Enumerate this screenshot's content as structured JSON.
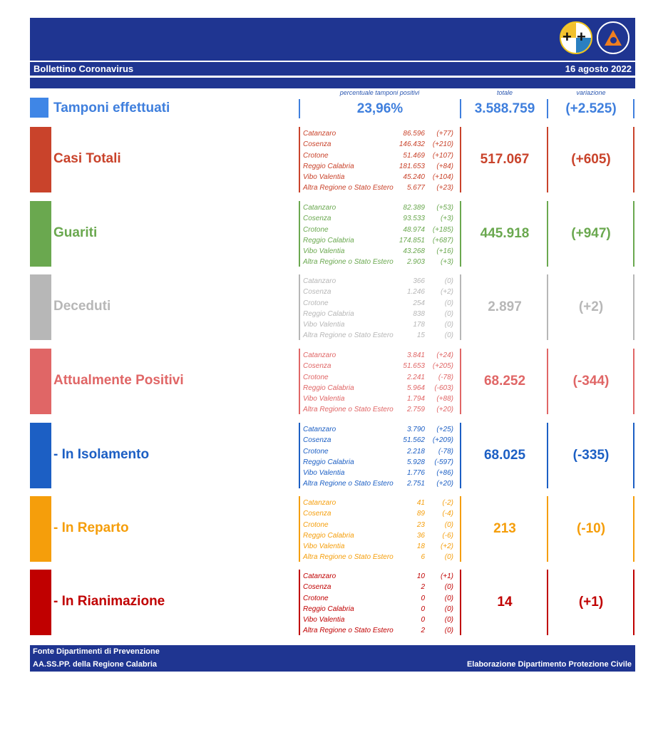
{
  "header": {
    "title": "Bollettino Coronavirus",
    "date": "16 agosto 2022"
  },
  "columns": {
    "percent_label": "percentuale tamponi positivi",
    "total_label": "totale",
    "variation_label": "variazione"
  },
  "tamponi": {
    "title": "Tamponi effettuati",
    "percent": "23,96%",
    "total": "3.588.759",
    "variation": "(+2.525)",
    "color": "#3f7fdd"
  },
  "blocks": [
    {
      "title": "Casi Totali",
      "color": "#c9432b",
      "total": "517.067",
      "variation": "(+605)",
      "rows": [
        {
          "name": "Catanzaro",
          "value": "86.596",
          "delta": "(+77)"
        },
        {
          "name": "Cosenza",
          "value": "146.432",
          "delta": "(+210)"
        },
        {
          "name": "Crotone",
          "value": "51.469",
          "delta": "(+107)"
        },
        {
          "name": "Reggio Calabria",
          "value": "181.653",
          "delta": "(+84)"
        },
        {
          "name": "Vibo Valentia",
          "value": "45.240",
          "delta": "(+104)"
        },
        {
          "name": "Altra Regione o Stato Estero",
          "value": "5.677",
          "delta": "(+23)"
        }
      ]
    },
    {
      "title": "Guariti",
      "color": "#6aa84f",
      "total": "445.918",
      "variation": "(+947)",
      "rows": [
        {
          "name": "Catanzaro",
          "value": "82.389",
          "delta": "(+53)"
        },
        {
          "name": "Cosenza",
          "value": "93.533",
          "delta": "(+3)"
        },
        {
          "name": "Crotone",
          "value": "48.974",
          "delta": "(+185)"
        },
        {
          "name": "Reggio Calabria",
          "value": "174.851",
          "delta": "(+687)"
        },
        {
          "name": "Vibo Valentia",
          "value": "43.268",
          "delta": "(+16)"
        },
        {
          "name": "Altra Regione o Stato Estero",
          "value": "2.903",
          "delta": "(+3)"
        }
      ]
    },
    {
      "title": "Deceduti",
      "color": "#b7b7b7",
      "total": "2.897",
      "variation": "(+2)",
      "rows": [
        {
          "name": "Catanzaro",
          "value": "366",
          "delta": "(0)"
        },
        {
          "name": "Cosenza",
          "value": "1.246",
          "delta": "(+2)"
        },
        {
          "name": "Crotone",
          "value": "254",
          "delta": "(0)"
        },
        {
          "name": "Reggio Calabria",
          "value": "838",
          "delta": "(0)"
        },
        {
          "name": "Vibo Valentia",
          "value": "178",
          "delta": "(0)"
        },
        {
          "name": "Altra Regione o Stato Estero",
          "value": "15",
          "delta": "(0)"
        }
      ]
    },
    {
      "title": "Attualmente Positivi",
      "color": "#e06666",
      "total": "68.252",
      "variation": "(-344)",
      "rows": [
        {
          "name": "Catanzaro",
          "value": "3.841",
          "delta": "(+24)"
        },
        {
          "name": "Cosenza",
          "value": "51.653",
          "delta": "(+205)"
        },
        {
          "name": "Crotone",
          "value": "2.241",
          "delta": "(-78)"
        },
        {
          "name": "Reggio Calabria",
          "value": "5.964",
          "delta": "(-603)"
        },
        {
          "name": "Vibo Valentia",
          "value": "1.794",
          "delta": "(+88)"
        },
        {
          "name": "Altra Regione o Stato Estero",
          "value": "2.759",
          "delta": "(+20)"
        }
      ]
    },
    {
      "title": "- In Isolamento",
      "color": "#1c5fc4",
      "total": "68.025",
      "variation": "(-335)",
      "rows": [
        {
          "name": "Catanzaro",
          "value": "3.790",
          "delta": "(+25)"
        },
        {
          "name": "Cosenza",
          "value": "51.562",
          "delta": "(+209)"
        },
        {
          "name": "Crotone",
          "value": "2.218",
          "delta": "(-78)"
        },
        {
          "name": "Reggio Calabria",
          "value": "5.928",
          "delta": "(-597)"
        },
        {
          "name": "Vibo Valentia",
          "value": "1.776",
          "delta": "(+86)"
        },
        {
          "name": "Altra Regione o Stato Estero",
          "value": "2.751",
          "delta": "(+20)"
        }
      ]
    },
    {
      "title": "- In Reparto",
      "color": "#f59e0b",
      "total": "213",
      "variation": "(-10)",
      "rows": [
        {
          "name": "Catanzaro",
          "value": "41",
          "delta": "(-2)"
        },
        {
          "name": "Cosenza",
          "value": "89",
          "delta": "(-4)"
        },
        {
          "name": "Crotone",
          "value": "23",
          "delta": "(0)"
        },
        {
          "name": "Reggio Calabria",
          "value": "36",
          "delta": "(-6)"
        },
        {
          "name": "Vibo Valentia",
          "value": "18",
          "delta": "(+2)"
        },
        {
          "name": "Altra Regione o Stato Estero",
          "value": "6",
          "delta": "(0)"
        }
      ]
    },
    {
      "title": "- In Rianimazione",
      "color": "#c00000",
      "total": "14",
      "variation": "(+1)",
      "rows": [
        {
          "name": "Catanzaro",
          "value": "10",
          "delta": "(+1)"
        },
        {
          "name": "Cosenza",
          "value": "2",
          "delta": "(0)"
        },
        {
          "name": "Crotone",
          "value": "0",
          "delta": "(0)"
        },
        {
          "name": "Reggio Calabria",
          "value": "0",
          "delta": "(0)"
        },
        {
          "name": "Vibo Valentia",
          "value": "0",
          "delta": "(0)"
        },
        {
          "name": "Altra Regione o Stato Estero",
          "value": "2",
          "delta": "(0)"
        }
      ]
    }
  ],
  "footer": {
    "line1": "Fonte Dipartimenti di Prevenzione",
    "line2": "AA.SS.PP.  della Regione Calabria",
    "right": "Elaborazione Dipartimento Protezione Civile"
  }
}
